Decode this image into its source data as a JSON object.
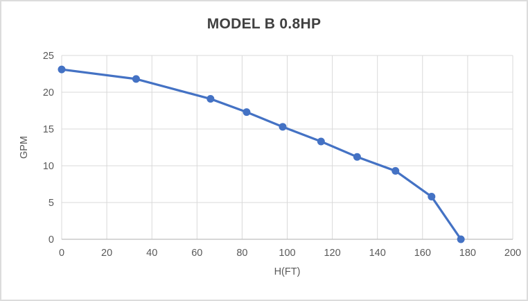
{
  "window": {
    "background": "#FFFFFF",
    "border_color": "#DCDCDC"
  },
  "chart_data": {
    "type": "line",
    "title": "MODEL B 0.8HP",
    "xlabel": "H(FT)",
    "ylabel": "GPM",
    "xlim": [
      0,
      200
    ],
    "ylim": [
      0,
      25
    ],
    "xticks": [
      0,
      20,
      40,
      60,
      80,
      100,
      120,
      140,
      160,
      180,
      200
    ],
    "yticks": [
      0,
      5,
      10,
      15,
      20,
      25
    ],
    "grid": true,
    "legend": false,
    "series": [
      {
        "name": "MODEL B 0.8HP",
        "color": "#4472C4",
        "marker": "circle",
        "points": [
          [
            0,
            23.1
          ],
          [
            33,
            21.8
          ],
          [
            66,
            19.1
          ],
          [
            82,
            17.3
          ],
          [
            98,
            15.3
          ],
          [
            115,
            13.3
          ],
          [
            131,
            11.2
          ],
          [
            148,
            9.3
          ],
          [
            164,
            5.8
          ],
          [
            177,
            0
          ]
        ]
      }
    ],
    "colors": {
      "line": "#4472C4",
      "grid": "#D9D9D9",
      "axis_line": "#BFBFBF",
      "tick_text": "#595959",
      "title_text": "#404040"
    }
  }
}
